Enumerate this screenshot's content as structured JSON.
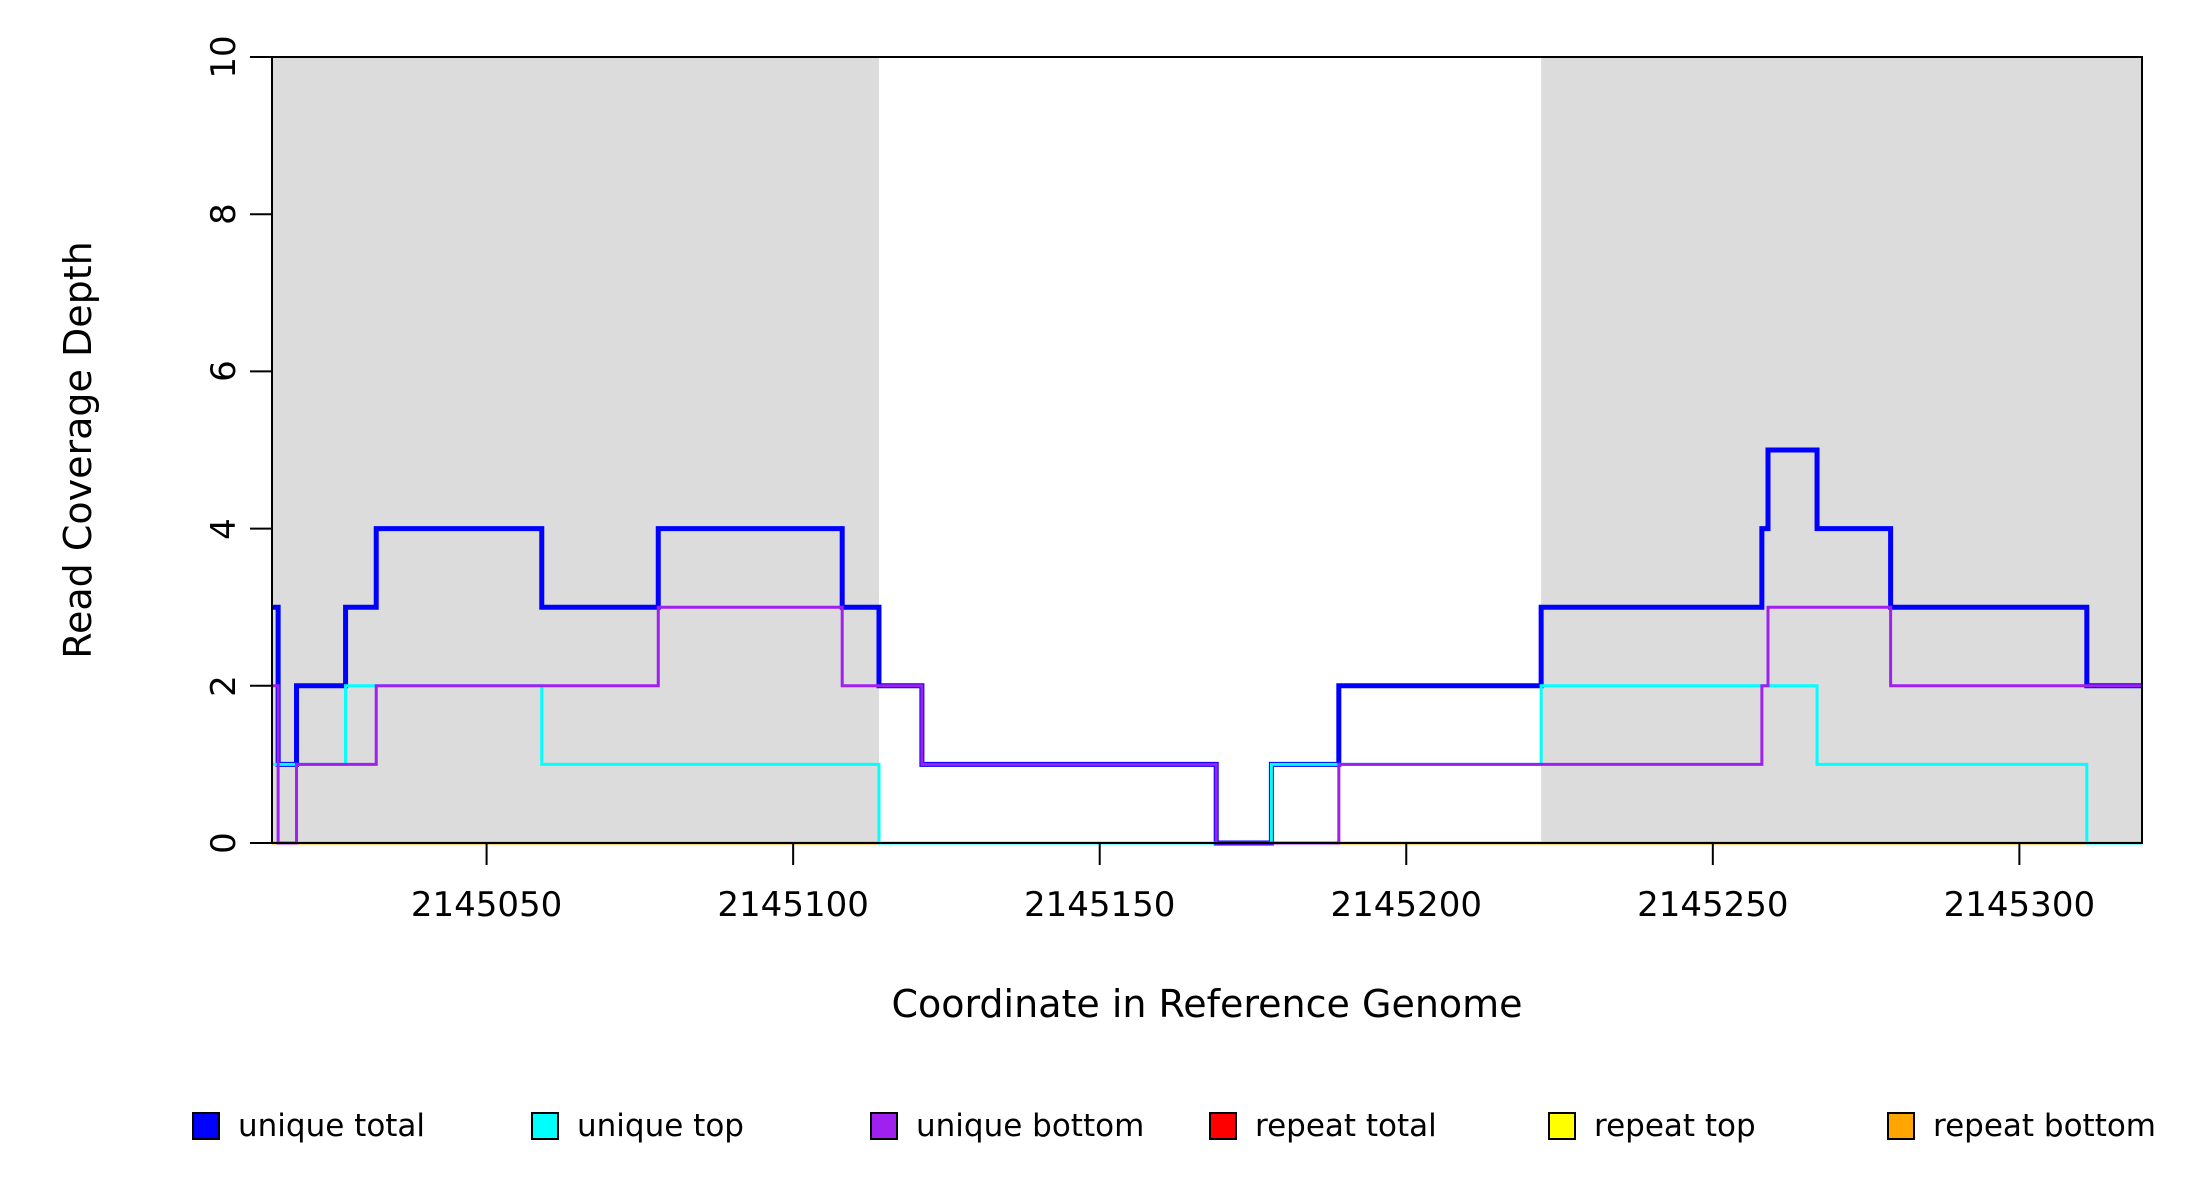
{
  "figure": {
    "background": "#FFFFFF",
    "axis_color": "#000000"
  },
  "chart_data": {
    "type": "line",
    "subtype": "step-coverage",
    "title": "",
    "xlabel": "Coordinate in Reference Genome",
    "ylabel": "Read Coverage Depth",
    "xlim": [
      2145015,
      2145320
    ],
    "ylim": [
      0,
      10
    ],
    "x_ticks": [
      2145050,
      2145100,
      2145150,
      2145200,
      2145250,
      2145300
    ],
    "y_ticks": [
      0,
      2,
      4,
      6,
      8,
      10
    ],
    "grid": false,
    "legend_position": "bottom-horizontal",
    "shade_color": "#DCDCDC",
    "shaded_regions": [
      {
        "start": 2145015,
        "end": 2145114
      },
      {
        "start": 2145222,
        "end": 2145320
      }
    ],
    "series": [
      {
        "name": "unique total",
        "color": "#0000FF",
        "line_width": 5,
        "steps": [
          [
            2145015,
            3
          ],
          [
            2145016,
            1
          ],
          [
            2145019,
            2
          ],
          [
            2145027,
            3
          ],
          [
            2145032,
            4
          ],
          [
            2145059,
            3
          ],
          [
            2145078,
            4
          ],
          [
            2145108,
            3
          ],
          [
            2145114,
            2
          ],
          [
            2145121,
            1
          ],
          [
            2145169,
            0
          ],
          [
            2145178,
            1
          ],
          [
            2145189,
            2
          ],
          [
            2145222,
            3
          ],
          [
            2145258,
            4
          ],
          [
            2145259,
            5
          ],
          [
            2145267,
            4
          ],
          [
            2145279,
            3
          ],
          [
            2145311,
            2
          ]
        ]
      },
      {
        "name": "repeat total",
        "color": "#FF0000",
        "line_width": 3,
        "steps": [
          [
            2145015,
            0
          ]
        ]
      },
      {
        "name": "repeat top",
        "color": "#FFFF00",
        "line_width": 3,
        "steps": [
          [
            2145015,
            0
          ]
        ]
      },
      {
        "name": "repeat bottom",
        "color": "#FFA500",
        "line_width": 3,
        "steps": [
          [
            2145015,
            0
          ]
        ]
      },
      {
        "name": "unique top",
        "color": "#00FFFF",
        "line_width": 3,
        "steps": [
          [
            2145015,
            1
          ],
          [
            2145027,
            2
          ],
          [
            2145059,
            1
          ],
          [
            2145114,
            0
          ],
          [
            2145178,
            1
          ],
          [
            2145222,
            2
          ],
          [
            2145267,
            1
          ],
          [
            2145311,
            0
          ]
        ]
      },
      {
        "name": "unique bottom",
        "color": "#A020F0",
        "line_width": 3,
        "steps": [
          [
            2145015,
            2
          ],
          [
            2145016,
            0
          ],
          [
            2145019,
            1
          ],
          [
            2145032,
            2
          ],
          [
            2145078,
            3
          ],
          [
            2145108,
            2
          ],
          [
            2145121,
            1
          ],
          [
            2145169,
            0
          ],
          [
            2145189,
            1
          ],
          [
            2145258,
            2
          ],
          [
            2145259,
            3
          ],
          [
            2145279,
            2
          ]
        ]
      }
    ],
    "legend": [
      {
        "label": "unique total",
        "color": "#0000FF"
      },
      {
        "label": "unique top",
        "color": "#00FFFF"
      },
      {
        "label": "unique bottom",
        "color": "#A020F0"
      },
      {
        "label": "repeat total",
        "color": "#FF0000"
      },
      {
        "label": "repeat top",
        "color": "#FFFF00"
      },
      {
        "label": "repeat bottom",
        "color": "#FFA500"
      }
    ]
  }
}
